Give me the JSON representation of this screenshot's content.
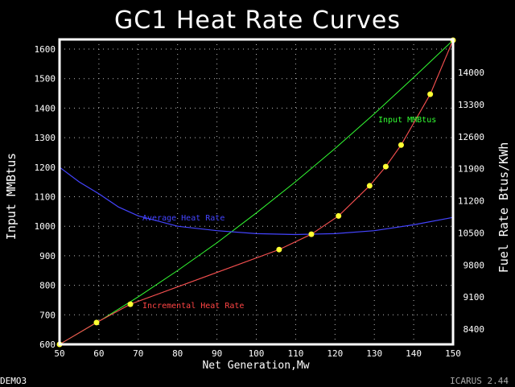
{
  "chart_data": {
    "type": "line",
    "title": "GC1 Heat Rate Curves",
    "xlabel": "Net Generation,Mw",
    "ylabel": "Input MMBtus",
    "y2label": "Fuel Rate Btus/KWh",
    "xlim": [
      50,
      150
    ],
    "ylim": [
      600,
      1630
    ],
    "x_ticks": [
      50,
      60,
      70,
      80,
      90,
      100,
      110,
      120,
      130,
      140,
      150
    ],
    "y_ticks": [
      600,
      700,
      800,
      900,
      1000,
      1100,
      1200,
      1300,
      1400,
      1500,
      1600
    ],
    "y2_ticks": [
      8400,
      9100,
      9800,
      10500,
      11200,
      11900,
      12600,
      13300,
      14000
    ],
    "grid": true,
    "series": [
      {
        "name": "Input MMBtus",
        "color": "#33ff33",
        "x": [
          50,
          60,
          70,
          80,
          90,
          100,
          110,
          120,
          130,
          140,
          150
        ],
        "y": [
          600,
          678,
          761,
          850,
          944,
          1045,
          1151,
          1263,
          1381,
          1504,
          1630
        ]
      },
      {
        "name": "Average Heat Rate",
        "color": "#4444ff",
        "x": [
          50,
          55,
          60,
          65,
          70,
          80,
          90,
          100,
          110,
          120,
          130,
          140,
          150
        ],
        "y": [
          1200,
          1150,
          1110,
          1065,
          1035,
          1000,
          985,
          975,
          972,
          975,
          985,
          1005,
          1030
        ]
      },
      {
        "name": "Incremental Heat Rate",
        "color": "#ff4444",
        "marker_color": "#ffff33",
        "x": [
          50,
          59.4,
          68,
          105.8,
          114,
          120.9,
          128.8,
          132.9,
          136.8,
          144.2,
          150
        ],
        "y": [
          600,
          674,
          736,
          921,
          973,
          1035,
          1137,
          1202,
          1275,
          1447,
          1630
        ]
      }
    ]
  },
  "footer": {
    "left": "DEMO3",
    "right": "ICARUS 2.44"
  }
}
